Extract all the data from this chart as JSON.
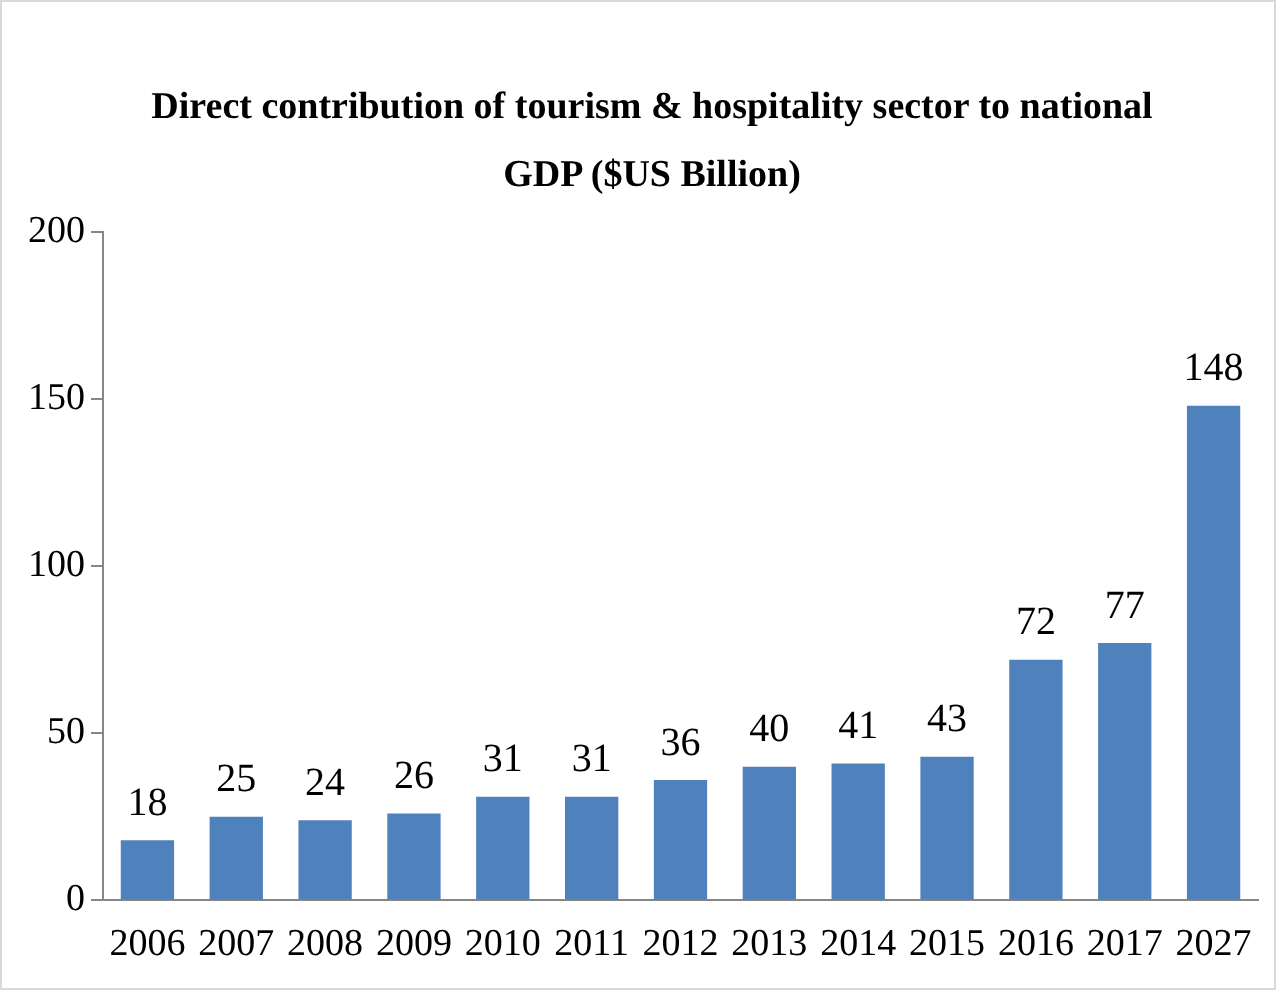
{
  "chart_data": {
    "type": "bar",
    "title": "Direct contribution of tourism & hospitality sector to national GDP ($US Billion)",
    "categories": [
      "2006",
      "2007",
      "2008",
      "2009",
      "2010",
      "2011",
      "2012",
      "2013",
      "2014",
      "2015",
      "2016",
      "2017",
      "2027"
    ],
    "values": [
      18,
      25,
      24,
      26,
      31,
      31,
      36,
      40,
      41,
      43,
      72,
      77,
      148
    ],
    "color": "#4f81bd",
    "ylim": [
      0,
      200
    ],
    "yticks": [
      0,
      50,
      100,
      150,
      200
    ],
    "grid": false,
    "legend": false,
    "data_labels": true
  }
}
